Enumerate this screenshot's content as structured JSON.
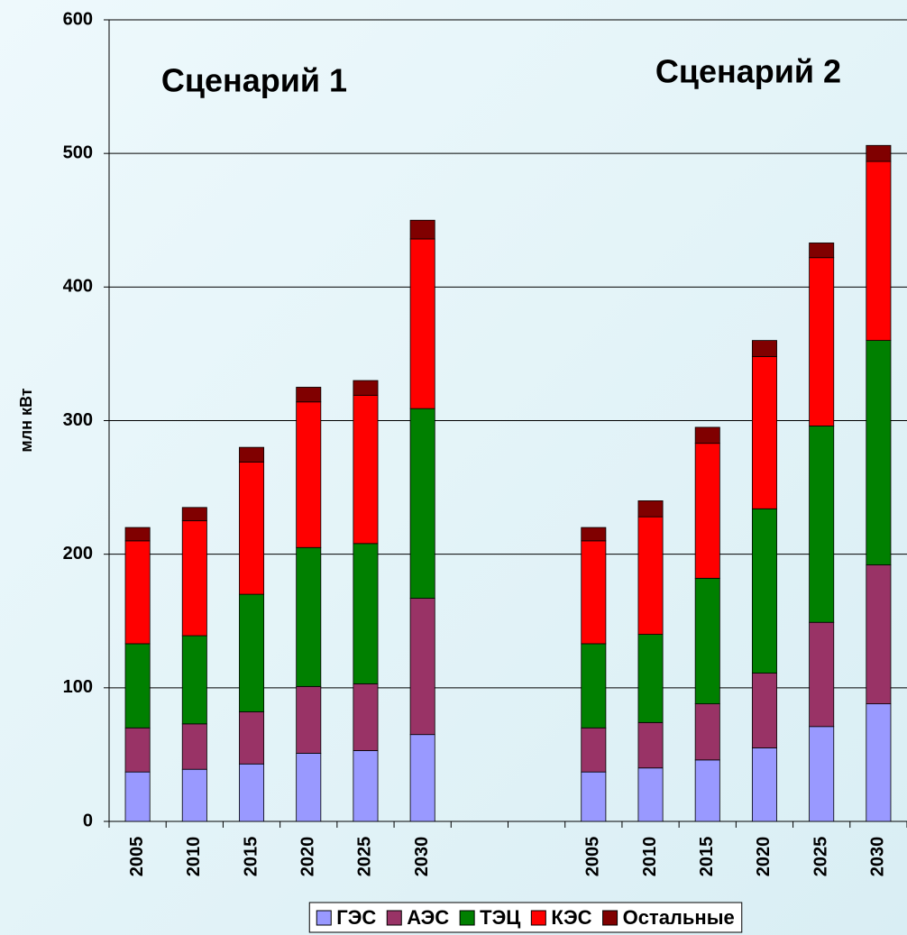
{
  "chart_data": {
    "type": "stacked_bar",
    "y_label": "млн кВт",
    "annotations": [
      "Сценарий 1",
      "Сценарий 2"
    ],
    "categories": [
      "2005",
      "2010",
      "2015",
      "2020",
      "2025",
      "2030",
      null,
      null,
      "2005",
      "2010",
      "2015",
      "2020",
      "2025",
      "2030"
    ],
    "series": [
      {
        "name": "ГЭС",
        "color": "#9999ff",
        "values": [
          37,
          39,
          43,
          51,
          53,
          65,
          null,
          null,
          37,
          40,
          46,
          55,
          71,
          88
        ]
      },
      {
        "name": "АЭС",
        "color": "#993366",
        "values": [
          33,
          34,
          39,
          50,
          50,
          102,
          null,
          null,
          33,
          34,
          42,
          56,
          78,
          104
        ]
      },
      {
        "name": "ТЭЦ",
        "color": "#008000",
        "values": [
          63,
          66,
          88,
          104,
          105,
          142,
          null,
          null,
          63,
          66,
          94,
          123,
          147,
          168
        ]
      },
      {
        "name": "КЭС",
        "color": "#ff0000",
        "values": [
          77,
          86,
          99,
          109,
          111,
          127,
          null,
          null,
          77,
          88,
          101,
          114,
          126,
          134
        ]
      },
      {
        "name": "Остальные",
        "color": "#800000",
        "values": [
          10,
          10,
          11,
          11,
          11,
          14,
          null,
          null,
          10,
          12,
          12,
          12,
          11,
          12
        ]
      }
    ],
    "ylim": [
      0,
      600
    ],
    "yticks": [
      0,
      100,
      200,
      300,
      400,
      500,
      600
    ],
    "grid": true,
    "legend": "bottom"
  }
}
